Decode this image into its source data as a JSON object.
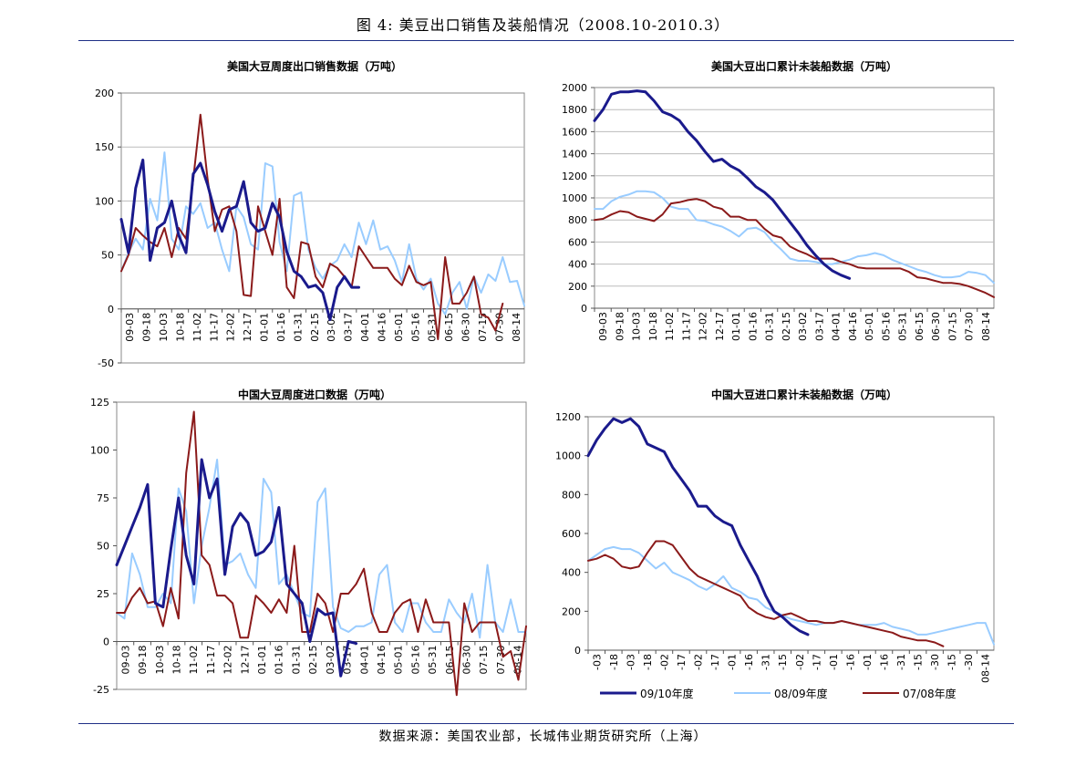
{
  "figure": {
    "title": "图 4: 美豆出口销售及装船情况（2008.10-2010.3）",
    "source": "数据来源：美国农业部，长城伟业期货研究所（上海）"
  },
  "legend": [
    {
      "name": "09/10年度",
      "color": "#1a1a8c"
    },
    {
      "name": "08/09年度",
      "color": "#99ccff"
    },
    {
      "name": "07/08年度",
      "color": "#8b1a1a"
    }
  ],
  "chart_data": [
    {
      "type": "line",
      "title": "美国大豆周度出口销售数据（万吨）",
      "ylim": [
        -50,
        200
      ],
      "yticks": [
        -50,
        0,
        50,
        100,
        150,
        200
      ],
      "xticks": [
        "09-03",
        "09-18",
        "10-03",
        "10-18",
        "11-02",
        "11-17",
        "12-02",
        "12-17",
        "01-01",
        "01-16",
        "01-31",
        "02-15",
        "03-02",
        "03-17",
        "04-01",
        "04-16",
        "05-01",
        "05-16",
        "05-31",
        "06-15",
        "06-30",
        "07-15",
        "07-30",
        "08-14"
      ],
      "grid": true,
      "series": [
        {
          "name": "09/10年度",
          "values": [
            83,
            52,
            112,
            138,
            45,
            75,
            80,
            100,
            68,
            52,
            125,
            135,
            115,
            90,
            72,
            92,
            95,
            118,
            80,
            72,
            75,
            98,
            85,
            53,
            35,
            30,
            20,
            22,
            15,
            -10,
            20,
            30,
            20,
            20
          ]
        },
        {
          "name": "08/09年度",
          "values": [
            35,
            52,
            65,
            55,
            102,
            82,
            145,
            65,
            55,
            95,
            88,
            98,
            75,
            80,
            55,
            35,
            95,
            85,
            60,
            55,
            135,
            132,
            62,
            35,
            105,
            108,
            55,
            38,
            28,
            40,
            45,
            60,
            48,
            80,
            60,
            82,
            55,
            58,
            45,
            25,
            60,
            28,
            18,
            28,
            5,
            -5,
            15,
            25,
            0,
            30,
            15,
            32,
            26,
            48,
            25,
            26,
            3
          ]
        },
        {
          "name": "07/08年度",
          "values": [
            35,
            50,
            75,
            68,
            62,
            58,
            75,
            48,
            75,
            65,
            120,
            180,
            120,
            72,
            92,
            95,
            72,
            13,
            12,
            95,
            72,
            50,
            102,
            20,
            10,
            62,
            60,
            30,
            20,
            42,
            38,
            30,
            20,
            58,
            48,
            38,
            38,
            38,
            28,
            22,
            40,
            25,
            22,
            25,
            -28,
            48,
            5,
            5,
            15,
            30,
            -5,
            -8,
            -20,
            5
          ]
        }
      ]
    },
    {
      "type": "line",
      "title": "美国大豆出口累计未装船数据（万吨）",
      "ylim": [
        0,
        2000
      ],
      "yticks": [
        0,
        200,
        400,
        600,
        800,
        1000,
        1200,
        1400,
        1600,
        1800,
        2000
      ],
      "xticks": [
        "09-03",
        "09-18",
        "10-03",
        "10-18",
        "11-02",
        "11-17",
        "12-02",
        "12-17",
        "01-01",
        "01-16",
        "01-31",
        "02-15",
        "03-02",
        "03-17",
        "04-01",
        "04-16",
        "05-01",
        "05-16",
        "05-31",
        "06-15",
        "06-30",
        "07-15",
        "07-30",
        "08-14"
      ],
      "grid": true,
      "series": [
        {
          "name": "09/10年度",
          "values": [
            1700,
            1800,
            1940,
            1960,
            1960,
            1970,
            1960,
            1880,
            1780,
            1750,
            1700,
            1600,
            1520,
            1420,
            1330,
            1350,
            1290,
            1250,
            1180,
            1100,
            1050,
            980,
            880,
            780,
            680,
            570,
            480,
            400,
            340,
            300,
            270
          ]
        },
        {
          "name": "08/09年度",
          "values": [
            900,
            900,
            970,
            1010,
            1030,
            1060,
            1060,
            1050,
            1000,
            920,
            900,
            900,
            800,
            790,
            760,
            740,
            700,
            650,
            720,
            730,
            690,
            600,
            530,
            450,
            430,
            430,
            420,
            400,
            400,
            420,
            440,
            470,
            480,
            500,
            480,
            440,
            410,
            380,
            350,
            330,
            300,
            280,
            280,
            290,
            330,
            320,
            300,
            230
          ]
        },
        {
          "name": "07/08年度",
          "values": [
            800,
            810,
            850,
            880,
            870,
            830,
            810,
            790,
            850,
            950,
            960,
            980,
            990,
            970,
            920,
            900,
            830,
            830,
            800,
            800,
            720,
            660,
            640,
            560,
            520,
            490,
            450,
            450,
            450,
            420,
            400,
            370,
            360,
            360,
            360,
            360,
            360,
            330,
            280,
            270,
            250,
            230,
            230,
            220,
            200,
            170,
            140,
            100
          ]
        }
      ]
    },
    {
      "type": "line",
      "title": "中国大豆周度进口数据（万吨）",
      "ylim": [
        -25,
        125
      ],
      "yticks": [
        -25,
        0,
        25,
        50,
        75,
        100,
        125
      ],
      "xticks": [
        "09-03",
        "09-18",
        "10-03",
        "10-18",
        "11-02",
        "11-17",
        "12-02",
        "12-17",
        "01-01",
        "01-16",
        "01-31",
        "02-15",
        "03-02",
        "03-17",
        "04-01",
        "04-16",
        "05-01",
        "05-16",
        "05-31",
        "06-15",
        "06-30",
        "07-15",
        "07-30",
        "08-14"
      ],
      "grid": false,
      "series": [
        {
          "name": "09/10年度",
          "values": [
            40,
            50,
            60,
            70,
            82,
            20,
            18,
            48,
            75,
            45,
            30,
            95,
            75,
            85,
            35,
            60,
            67,
            62,
            45,
            47,
            52,
            70,
            30,
            25,
            20,
            0,
            17,
            14,
            15,
            -18,
            0,
            -1
          ]
        },
        {
          "name": "08/09年度",
          "values": [
            15,
            12,
            46,
            35,
            18,
            18,
            25,
            20,
            80,
            68,
            20,
            50,
            70,
            95,
            40,
            42,
            46,
            35,
            28,
            85,
            78,
            30,
            35,
            25,
            15,
            13,
            73,
            80,
            18,
            7,
            5,
            8,
            8,
            10,
            35,
            40,
            10,
            5,
            20,
            20,
            10,
            5,
            5,
            22,
            15,
            10,
            25,
            2,
            40,
            10,
            5,
            22,
            5,
            5
          ]
        },
        {
          "name": "07/08年度",
          "values": [
            15,
            15,
            23,
            28,
            20,
            21,
            8,
            28,
            12,
            88,
            120,
            45,
            40,
            24,
            24,
            20,
            2,
            2,
            24,
            20,
            15,
            22,
            15,
            50,
            5,
            5,
            25,
            20,
            5,
            25,
            25,
            30,
            38,
            15,
            5,
            5,
            15,
            20,
            22,
            5,
            22,
            10,
            10,
            10,
            -28,
            20,
            5,
            10,
            10,
            10,
            -8,
            -5,
            -20,
            8
          ]
        }
      ]
    },
    {
      "type": "line",
      "title": "中国大豆进口累计未装船数据（万吨）",
      "ylim": [
        0,
        1200
      ],
      "yticks": [
        0,
        200,
        400,
        600,
        800,
        1000,
        1200
      ],
      "xticks": [
        "-03",
        "-18",
        "-03",
        "-18",
        "-02",
        "-17",
        "-02",
        "-17",
        "-01",
        "-16",
        "-31",
        "-15",
        "-02",
        "-17",
        "-01",
        "-16",
        "-01",
        "-16",
        "-31",
        "-15",
        "-30",
        "-15",
        "-30",
        "08-14"
      ],
      "grid": false,
      "series": [
        {
          "name": "09/10年度",
          "values": [
            1000,
            1080,
            1140,
            1190,
            1170,
            1190,
            1150,
            1060,
            1040,
            1020,
            940,
            880,
            820,
            740,
            740,
            690,
            660,
            640,
            540,
            460,
            380,
            280,
            200,
            170,
            130,
            100,
            80
          ]
        },
        {
          "name": "08/09年度",
          "values": [
            460,
            490,
            520,
            530,
            520,
            520,
            500,
            460,
            420,
            450,
            400,
            380,
            360,
            330,
            310,
            340,
            380,
            320,
            300,
            270,
            260,
            220,
            200,
            180,
            160,
            150,
            140,
            130,
            140,
            140,
            150,
            140,
            130,
            130,
            130,
            140,
            120,
            110,
            100,
            80,
            80,
            90,
            100,
            110,
            120,
            130,
            140,
            140,
            30
          ]
        },
        {
          "name": "07/08年度",
          "values": [
            460,
            470,
            490,
            470,
            430,
            420,
            430,
            500,
            560,
            560,
            540,
            480,
            420,
            380,
            360,
            340,
            320,
            300,
            280,
            220,
            190,
            170,
            160,
            180,
            190,
            170,
            150,
            150,
            140,
            140,
            150,
            140,
            130,
            120,
            110,
            100,
            90,
            70,
            60,
            50,
            50,
            40,
            20
          ]
        }
      ]
    }
  ]
}
